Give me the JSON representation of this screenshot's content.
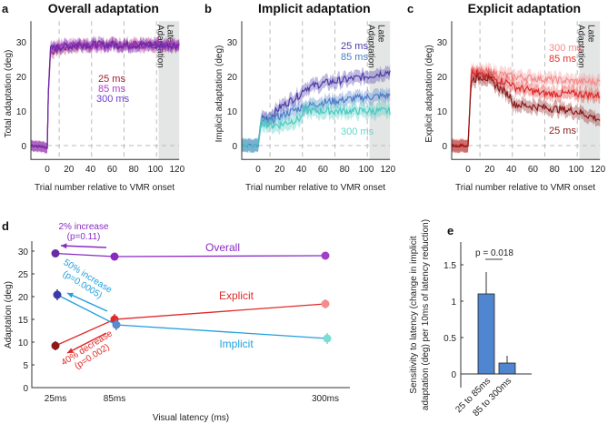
{
  "colors": {
    "late": "#e4e6e5",
    "grid": "#bbbbbb"
  },
  "chart_data": [
    {
      "panel": "a",
      "type": "line",
      "title": "Overall adaptation",
      "xlabel": "Trial number relative to VMR onset",
      "ylabel": "Total adaptation (deg)",
      "xlim": [
        -15,
        122
      ],
      "ylim": [
        -4,
        36
      ],
      "xticks": [
        0,
        20,
        40,
        60,
        80,
        100,
        120
      ],
      "yticks": [
        0,
        10,
        20,
        30
      ],
      "dashed_x": [
        11,
        41,
        71,
        101
      ],
      "late_region": [
        103,
        122
      ],
      "late_label": [
        "Late",
        "Adaptation"
      ],
      "series": [
        {
          "name": "25 ms",
          "color": "#a3195b",
          "label_color": "#a31c2c",
          "err": 1.5,
          "points": [
            [
              -15,
              0
            ],
            [
              0,
              -0.5
            ],
            [
              1,
              15
            ],
            [
              3,
              27
            ],
            [
              10,
              28
            ],
            [
              30,
              29
            ],
            [
              122,
              29.3
            ]
          ]
        },
        {
          "name": "85 ms",
          "color": "#b23cc8",
          "label_color": "#b33cd0",
          "err": 1.5,
          "points": [
            [
              -15,
              0
            ],
            [
              0,
              -0.5
            ],
            [
              1,
              16
            ],
            [
              3,
              28
            ],
            [
              10,
              28.5
            ],
            [
              30,
              29
            ],
            [
              122,
              29.2
            ]
          ]
        },
        {
          "name": "300 ms",
          "color": "#6a2aa8",
          "label_color": "#6c3fcf",
          "err": 1.5,
          "points": [
            [
              -15,
              0
            ],
            [
              0,
              -0.5
            ],
            [
              1,
              15
            ],
            [
              3,
              28
            ],
            [
              10,
              28.5
            ],
            [
              30,
              29.2
            ],
            [
              122,
              29
            ]
          ]
        }
      ]
    },
    {
      "panel": "b",
      "type": "line",
      "title": "Implicit adaptation",
      "xlabel": "Trial number relative to VMR onset",
      "ylabel": "Implicit adaptation (deg)",
      "xlim": [
        -15,
        122
      ],
      "ylim": [
        -4,
        36
      ],
      "xticks": [
        0,
        20,
        40,
        60,
        80,
        100,
        120
      ],
      "yticks": [
        0,
        10,
        20,
        30
      ],
      "dashed_x": [
        11,
        41,
        71,
        101
      ],
      "late_region": [
        103,
        122
      ],
      "late_label": [
        "Late",
        "Adaptation"
      ],
      "series": [
        {
          "name": "25 ms",
          "color": "#4b3aa8",
          "label_color": "#4b3aa8",
          "err": 1.8,
          "points": [
            [
              -15,
              0
            ],
            [
              0,
              0
            ],
            [
              3,
              8
            ],
            [
              10,
              8
            ],
            [
              20,
              11
            ],
            [
              40,
              15
            ],
            [
              42,
              16.5
            ],
            [
              60,
              18
            ],
            [
              100,
              20
            ],
            [
              122,
              21.5
            ]
          ]
        },
        {
          "name": "85 ms",
          "color": "#4a7cc8",
          "label_color": "#4a7cc8",
          "err": 1.8,
          "points": [
            [
              -15,
              0
            ],
            [
              0,
              0
            ],
            [
              3,
              7
            ],
            [
              10,
              7
            ],
            [
              20,
              8.5
            ],
            [
              40,
              11
            ],
            [
              60,
              12.5
            ],
            [
              100,
              14
            ],
            [
              122,
              14.5
            ]
          ]
        },
        {
          "name": "300 ms",
          "color": "#49c9c0",
          "label_color": "#5fd6cc",
          "err": 2,
          "points": [
            [
              -15,
              0
            ],
            [
              0,
              0
            ],
            [
              3,
              7
            ],
            [
              10,
              6
            ],
            [
              20,
              6
            ],
            [
              40,
              8
            ],
            [
              42,
              10
            ],
            [
              60,
              10
            ],
            [
              100,
              10
            ],
            [
              122,
              10
            ]
          ]
        }
      ]
    },
    {
      "panel": "c",
      "type": "line",
      "title": "Explicit adaptation",
      "xlabel": "Trial number relative to VMR onset",
      "ylabel": "Explicit adaptation (deg)",
      "xlim": [
        -15,
        122
      ],
      "ylim": [
        -4,
        36
      ],
      "xticks": [
        0,
        20,
        40,
        60,
        80,
        100,
        120
      ],
      "yticks": [
        0,
        10,
        20,
        30
      ],
      "dashed_x": [
        11,
        41,
        71,
        101
      ],
      "late_region": [
        103,
        122
      ],
      "late_label": [
        "Late",
        "Adaptation"
      ],
      "series": [
        {
          "name": "300 ms",
          "color": "#f48c8c",
          "label_color": "#f58a8a",
          "err": 1.8,
          "points": [
            [
              -15,
              0
            ],
            [
              0,
              0
            ],
            [
              3,
              22
            ],
            [
              10,
              21
            ],
            [
              20,
              21.5
            ],
            [
              40,
              20
            ],
            [
              60,
              19.5
            ],
            [
              100,
              18.5
            ],
            [
              122,
              18.5
            ]
          ]
        },
        {
          "name": "85 ms",
          "color": "#e02a2a",
          "label_color": "#e0302a",
          "err": 1.8,
          "points": [
            [
              -15,
              0
            ],
            [
              0,
              0
            ],
            [
              3,
              21
            ],
            [
              15,
              20
            ],
            [
              40,
              18
            ],
            [
              42,
              17
            ],
            [
              70,
              15
            ],
            [
              100,
              15
            ],
            [
              122,
              14.5
            ]
          ]
        },
        {
          "name": "25 ms",
          "color": "#8b1a1a",
          "label_color": "#8b1a1a",
          "err": 1.8,
          "points": [
            [
              -15,
              0
            ],
            [
              0,
              0
            ],
            [
              3,
              19
            ],
            [
              15,
              20
            ],
            [
              40,
              14
            ],
            [
              42,
              12
            ],
            [
              70,
              11
            ],
            [
              100,
              10
            ],
            [
              122,
              7.5
            ]
          ]
        }
      ]
    },
    {
      "panel": "d",
      "type": "line",
      "xlabel": "Visual latency (ms)",
      "ylabel": "Adaptation (deg)",
      "categories": [
        "25ms",
        "85ms",
        "300ms"
      ],
      "ylim": [
        0,
        32
      ],
      "yticks": [
        0,
        5,
        10,
        15,
        20,
        25,
        30
      ],
      "series": [
        {
          "name": "Overall",
          "color": "#8a2bc0",
          "values": [
            29.5,
            28.8,
            29.0
          ],
          "err": [
            0.5,
            0.5,
            0.5
          ],
          "point_colors": [
            "#6a2aa8",
            "#8a2bc0",
            "#a040c8"
          ]
        },
        {
          "name": "Explicit",
          "color": "#e02a2a",
          "values": [
            9.2,
            15.0,
            18.4
          ],
          "err": [
            1,
            1.2,
            1
          ],
          "point_colors": [
            "#8b1a1a",
            "#e02a2a",
            "#f48c8c"
          ]
        },
        {
          "name": "Implicit",
          "color": "#1fa0dc",
          "values": [
            20.4,
            13.8,
            10.8
          ],
          "err": [
            1.2,
            1.2,
            1.2
          ],
          "point_colors": [
            "#3a3aa8",
            "#5a8ad0",
            "#7adcd4"
          ]
        }
      ],
      "annotations": [
        {
          "text": [
            "2% increase",
            "(p=0.11)"
          ],
          "color": "#8a2bc0"
        },
        {
          "text": [
            "50% increase",
            "(p=0.0005)"
          ],
          "color": "#1fa0dc"
        },
        {
          "text": [
            "40% decrease",
            "(p=0.002)"
          ],
          "color": "#e02a2a"
        }
      ]
    },
    {
      "panel": "e",
      "type": "bar",
      "ylabel": [
        "Sensitivity to latency (change in implicit",
        "adaptation (deg) per 10ms of latency reduction)"
      ],
      "categories": [
        "25 to 85ms",
        "85 to 300ms"
      ],
      "values": [
        1.1,
        0.15
      ],
      "err": [
        0.3,
        0.1
      ],
      "ylim": [
        -0.5,
        1.8
      ],
      "yticks": [
        0,
        0.5,
        1,
        1.5
      ],
      "ytick_labels": [
        "0",
        "0.5",
        "1",
        "1.5"
      ],
      "color": "#4f86cf",
      "significance": "p = 0.018"
    }
  ]
}
